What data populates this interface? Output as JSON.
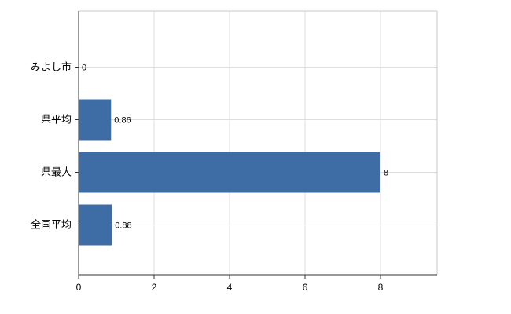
{
  "chart_data": {
    "type": "bar",
    "orientation": "horizontal",
    "title": "",
    "xlabel": "",
    "ylabel": "",
    "categories": [
      "みよし市",
      "県平均",
      "県最大",
      "全国平均"
    ],
    "values": [
      0,
      0.86,
      8,
      0.88
    ],
    "value_labels": [
      "0",
      "0.86",
      "8",
      "0.88"
    ],
    "xticks": [
      0,
      2,
      4,
      6,
      8
    ],
    "xtick_labels": [
      "0",
      "2",
      "4",
      "6",
      "8"
    ],
    "xlim": [
      0,
      9.5
    ],
    "grid": true,
    "legend": "none",
    "colors": {
      "bar": "#3e6ca4",
      "grid": "#dedede",
      "axis": "#333333",
      "border": "#c8c8c8",
      "text": "#000000",
      "background": "#ffffff"
    }
  }
}
